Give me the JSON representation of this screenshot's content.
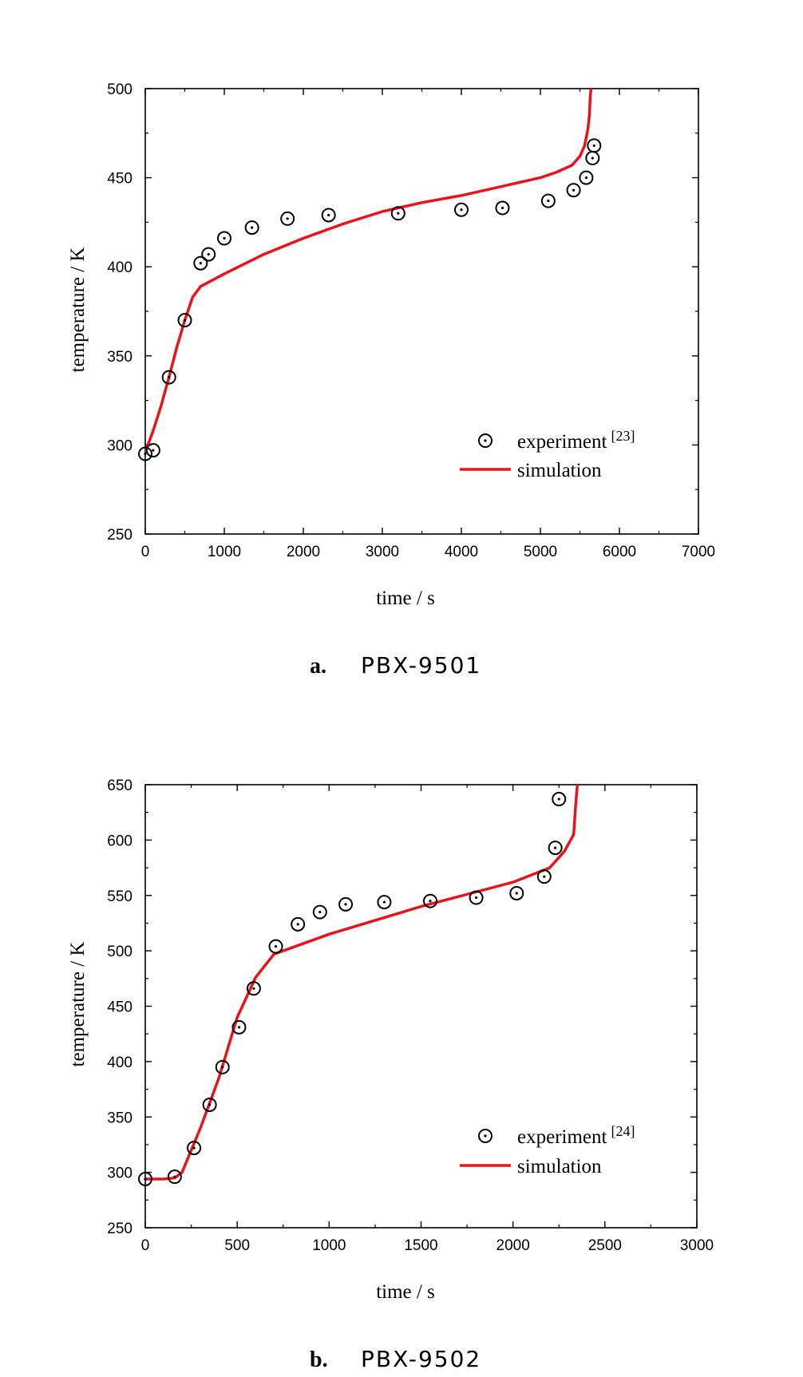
{
  "colors": {
    "simulation": "#e8141a",
    "experiment": "#000000",
    "axis": "#000000"
  },
  "chart_data": [
    {
      "type": "scatter",
      "caption_letter": "a.",
      "caption_name": "PBX-9501",
      "xlabel": "time / s",
      "ylabel": "temperature / K",
      "xlim": [
        0,
        7000
      ],
      "ylim": [
        250,
        500
      ],
      "xticks": [
        "0",
        "1000",
        "2000",
        "3000",
        "4000",
        "5000",
        "6000",
        "7000"
      ],
      "yticks": [
        "250",
        "300",
        "350",
        "400",
        "450",
        "500"
      ],
      "legend_position": "bottom-right",
      "series": [
        {
          "name": "experiment",
          "ref": "[23]",
          "kind": "markers",
          "x": [
            0,
            100,
            300,
            500,
            700,
            800,
            1000,
            1350,
            1800,
            2320,
            3200,
            4000,
            4520,
            5100,
            5420,
            5580,
            5660,
            5680
          ],
          "y": [
            295,
            297,
            338,
            370,
            402,
            407,
            416,
            422,
            427,
            429,
            430,
            432,
            433,
            437,
            443,
            450,
            461,
            468
          ]
        },
        {
          "name": "simulation",
          "kind": "line",
          "x": [
            0,
            100,
            200,
            300,
            400,
            500,
            600,
            700,
            1000,
            1500,
            2000,
            2500,
            3000,
            3500,
            4000,
            4500,
            5000,
            5200,
            5400,
            5500,
            5560,
            5600,
            5620,
            5630,
            5640
          ],
          "y": [
            296,
            308,
            322,
            338,
            355,
            370,
            383,
            389,
            396,
            407,
            416,
            424,
            431,
            436,
            440,
            445,
            450,
            453,
            457,
            462,
            468,
            477,
            485,
            495,
            500
          ]
        }
      ]
    },
    {
      "type": "scatter",
      "caption_letter": "b.",
      "caption_name": "PBX-9502",
      "xlabel": "time / s",
      "ylabel": "temperature / K",
      "xlim": [
        0,
        3000
      ],
      "ylim": [
        250,
        650
      ],
      "xticks": [
        "0",
        "500",
        "1000",
        "1500",
        "2000",
        "2500",
        "3000"
      ],
      "yticks": [
        "250",
        "300",
        "350",
        "400",
        "450",
        "500",
        "550",
        "600",
        "650"
      ],
      "legend_position": "bottom-right",
      "series": [
        {
          "name": "experiment",
          "ref": "[24]",
          "kind": "markers",
          "x": [
            0,
            160,
            265,
            350,
            420,
            510,
            590,
            710,
            830,
            950,
            1090,
            1300,
            1550,
            1800,
            2020,
            2170,
            2230,
            2250
          ],
          "y": [
            294,
            296,
            322,
            361,
            395,
            431,
            466,
            504,
            524,
            535,
            542,
            544,
            545,
            548,
            552,
            567,
            593,
            637
          ]
        },
        {
          "name": "simulation",
          "kind": "line",
          "x": [
            0,
            100,
            160,
            200,
            300,
            400,
            500,
            600,
            700,
            1000,
            1500,
            2000,
            2200,
            2280,
            2330,
            2340,
            2350
          ],
          "y": [
            294,
            294,
            295,
            300,
            340,
            385,
            440,
            476,
            497,
            515,
            540,
            562,
            575,
            590,
            605,
            630,
            650
          ]
        }
      ]
    }
  ]
}
